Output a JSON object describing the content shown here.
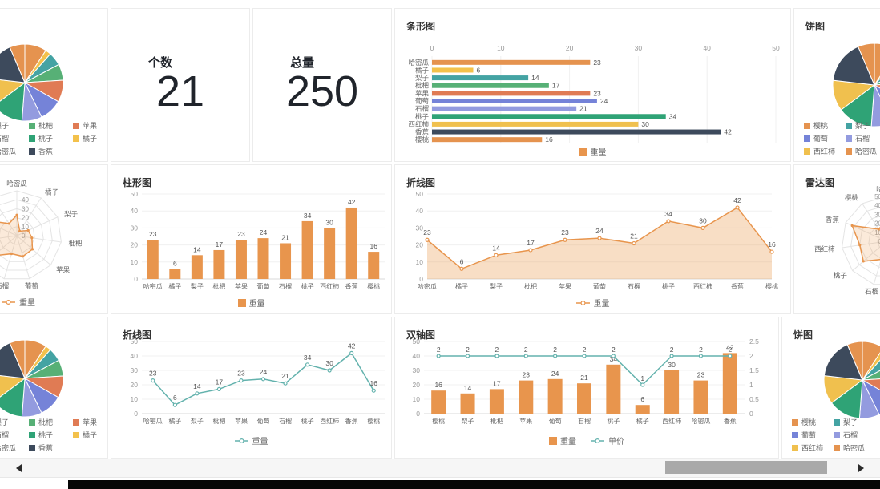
{
  "colors": {
    "orange": "#e8954d",
    "teal": "#63b2ad",
    "axis_text": "#999999",
    "value_label": "#555555",
    "category_text": "#666666",
    "grid": "#f0f0f0",
    "axis_line": "#d9d9d9",
    "title_text": "#333333",
    "area_fill": "rgba(236,160,88,0.35)",
    "radar_fill": "rgba(236,160,88,0.22)"
  },
  "palette": [
    "#e5934f",
    "#f3c14b",
    "#44a3a3",
    "#57b076",
    "#e07b54",
    "#7583d8",
    "#939bdf",
    "#2fa376",
    "#f0c04e",
    "#3d4a5c",
    "#e5934f"
  ],
  "kpi": {
    "count": {
      "title": "个数",
      "value": "21"
    },
    "total": {
      "title": "总量",
      "value": "250"
    }
  },
  "chart_data": [
    {
      "id": "pie-top-left",
      "type": "pie",
      "title": "",
      "categories": [
        "哈密瓜",
        "橘子",
        "梨子",
        "枇杷",
        "苹果",
        "葡萄",
        "石榴",
        "桃子",
        "西红柿",
        "香蕉",
        "樱桃"
      ],
      "values": [
        23,
        6,
        14,
        17,
        23,
        24,
        21,
        34,
        30,
        42,
        16
      ],
      "legend_items": [
        "梨子",
        "枇杷",
        "苹果",
        "石榴",
        "桃子",
        "橘子",
        "哈密瓜",
        "香蕉"
      ]
    },
    {
      "id": "barh",
      "type": "bar-horizontal",
      "title": "条形图",
      "categories": [
        "哈密瓜",
        "橘子",
        "梨子",
        "枇杷",
        "苹果",
        "葡萄",
        "石榴",
        "桃子",
        "西红柿",
        "香蕉",
        "樱桃"
      ],
      "values": [
        23,
        6,
        14,
        17,
        23,
        24,
        21,
        34,
        30,
        42,
        16
      ],
      "xlim": [
        0,
        50
      ],
      "xticks": [
        0,
        10,
        20,
        30,
        40,
        50
      ],
      "multicolor": true,
      "legend": [
        {
          "name": "重量",
          "marker": "rect",
          "color": "orange"
        }
      ]
    },
    {
      "id": "pie-top-right",
      "type": "pie",
      "title": "饼图",
      "categories": [
        "哈密瓜",
        "橘子",
        "梨子",
        "枇杷",
        "苹果",
        "葡萄",
        "石榴",
        "桃子",
        "西红柿",
        "香蕉",
        "樱桃"
      ],
      "values": [
        23,
        6,
        14,
        17,
        23,
        24,
        21,
        34,
        30,
        42,
        16
      ],
      "legend_items": [
        "樱桃",
        "梨子",
        "葡萄",
        "石榴",
        "西红柿",
        "哈密瓜"
      ]
    },
    {
      "id": "radar-left",
      "type": "radar",
      "title": "",
      "categories": [
        "哈密瓜",
        "橘子",
        "梨子",
        "枇杷",
        "苹果",
        "葡萄",
        "石榴",
        "桃子",
        "西红柿",
        "香蕉",
        "樱桃"
      ],
      "values": [
        23,
        6,
        14,
        17,
        23,
        24,
        21,
        34,
        30,
        42,
        16
      ],
      "rlim": [
        0,
        50
      ],
      "rticks": [
        0,
        10,
        20,
        30,
        40
      ],
      "legend": [
        {
          "name": "重量",
          "marker": "line",
          "color": "orange"
        }
      ]
    },
    {
      "id": "column",
      "type": "bar-vertical",
      "title": "柱形图",
      "categories": [
        "哈密瓜",
        "橘子",
        "梨子",
        "枇杷",
        "苹果",
        "葡萄",
        "石榴",
        "桃子",
        "西红柿",
        "香蕉",
        "樱桃"
      ],
      "values": [
        23,
        6,
        14,
        17,
        23,
        24,
        21,
        34,
        30,
        42,
        16
      ],
      "ylim": [
        0,
        50
      ],
      "yticks": [
        0,
        10,
        20,
        30,
        40,
        50
      ],
      "legend": [
        {
          "name": "重量",
          "marker": "rect",
          "color": "orange"
        }
      ]
    },
    {
      "id": "area",
      "type": "area",
      "title": "折线图",
      "categories": [
        "哈密瓜",
        "橘子",
        "梨子",
        "枇杷",
        "苹果",
        "葡萄",
        "石榴",
        "桃子",
        "西红柿",
        "香蕉",
        "樱桃"
      ],
      "values": [
        23,
        6,
        14,
        17,
        23,
        24,
        21,
        34,
        30,
        42,
        16
      ],
      "ylim": [
        0,
        50
      ],
      "yticks": [
        0,
        10,
        20,
        30,
        40,
        50
      ],
      "color": "orange",
      "legend": [
        {
          "name": "重量",
          "marker": "line",
          "color": "orange"
        }
      ]
    },
    {
      "id": "radar-right",
      "type": "radar",
      "title": "雷达图",
      "categories": [
        "哈密瓜",
        "橘子",
        "梨子",
        "枇杷",
        "苹果",
        "葡萄",
        "石榴",
        "桃子",
        "西红柿",
        "香蕉",
        "樱桃"
      ],
      "values": [
        23,
        6,
        14,
        17,
        23,
        24,
        21,
        34,
        30,
        42,
        16
      ],
      "rlim": [
        0,
        50
      ],
      "rticks": [
        0,
        10,
        20,
        30,
        40,
        50
      ]
    },
    {
      "id": "pie-bottom-left",
      "type": "pie",
      "title": "",
      "categories": [
        "哈密瓜",
        "橘子",
        "梨子",
        "枇杷",
        "苹果",
        "葡萄",
        "石榴",
        "桃子",
        "西红柿",
        "香蕉",
        "樱桃"
      ],
      "values": [
        23,
        6,
        14,
        17,
        23,
        24,
        21,
        34,
        30,
        42,
        16
      ],
      "legend_items": [
        "梨子",
        "枇杷",
        "苹果",
        "石榴",
        "桃子",
        "橘子",
        "哈密瓜",
        "香蕉"
      ]
    },
    {
      "id": "line",
      "type": "line",
      "title": "折线图",
      "categories": [
        "哈密瓜",
        "橘子",
        "梨子",
        "枇杷",
        "苹果",
        "葡萄",
        "石榴",
        "桃子",
        "西红柿",
        "香蕉",
        "樱桃"
      ],
      "values": [
        23,
        6,
        14,
        17,
        23,
        24,
        21,
        34,
        30,
        42,
        16
      ],
      "ylim": [
        0,
        50
      ],
      "yticks": [
        0,
        10,
        20,
        30,
        40,
        50
      ],
      "color": "teal",
      "legend": [
        {
          "name": "重量",
          "marker": "line",
          "color": "teal"
        }
      ]
    },
    {
      "id": "dual",
      "type": "dual-axis",
      "title": "双轴图",
      "categories": [
        "樱桃",
        "梨子",
        "枇杷",
        "苹果",
        "葡萄",
        "石榴",
        "桃子",
        "橘子",
        "西红柿",
        "哈密瓜",
        "香蕉"
      ],
      "series": [
        {
          "name": "重量",
          "type": "bar",
          "color": "orange",
          "values": [
            16,
            14,
            17,
            23,
            24,
            21,
            34,
            6,
            30,
            23,
            42
          ]
        },
        {
          "name": "单价",
          "type": "line",
          "color": "teal",
          "values": [
            2,
            2,
            2,
            2,
            2,
            2,
            2,
            1,
            2,
            2,
            2
          ]
        }
      ],
      "ylim_left": [
        0,
        50
      ],
      "yticks_left": [
        0,
        10,
        20,
        30,
        40,
        50
      ],
      "ylim_right": [
        0,
        2.5
      ],
      "yticks_right": [
        0,
        0.5,
        1,
        1.5,
        2,
        2.5
      ],
      "legend": [
        {
          "name": "重量",
          "marker": "rect",
          "color": "orange"
        },
        {
          "name": "单价",
          "marker": "line",
          "color": "teal"
        }
      ]
    },
    {
      "id": "pie-bottom-right",
      "type": "pie",
      "title": "饼图",
      "categories": [
        "哈密瓜",
        "橘子",
        "梨子",
        "枇杷",
        "苹果",
        "葡萄",
        "石榴",
        "桃子",
        "西红柿",
        "香蕉",
        "樱桃"
      ],
      "values": [
        23,
        6,
        14,
        17,
        23,
        24,
        21,
        34,
        30,
        42,
        16
      ],
      "legend_items": [
        "樱桃",
        "梨子",
        "葡萄",
        "石榴",
        "西红柿",
        "哈密瓜"
      ]
    }
  ],
  "scrollbar": {
    "left_icon": "scroll-left-arrow",
    "right_icon": "scroll-right-arrow"
  }
}
